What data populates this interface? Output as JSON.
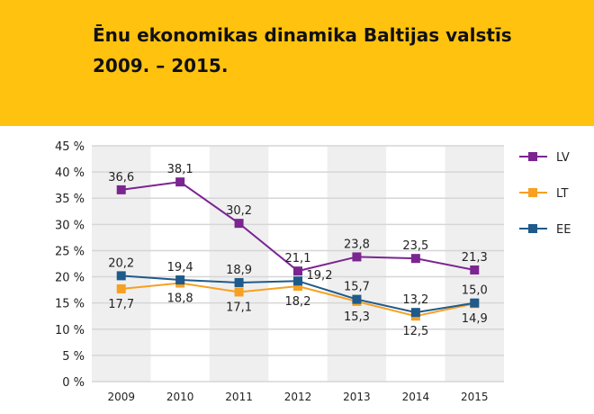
{
  "header": {
    "title_line1": "Ēnu ekonomikas dinamika Baltijas valstīs",
    "title_line2": "2009. – 2015."
  },
  "colors": {
    "header_bg": "#FFC20E",
    "LV": "#7B2591",
    "LT": "#F7A021",
    "EE": "#1F5A8A",
    "band": "#EFEFEF",
    "grid": "#D6D6D6"
  },
  "chart_data": {
    "type": "line",
    "categories": [
      "2009",
      "2010",
      "2011",
      "2012",
      "2013",
      "2014",
      "2015"
    ],
    "ylim": [
      0,
      45
    ],
    "yticks": [
      "0 %",
      "5 %",
      "10 %",
      "15 %",
      "20 %",
      "25 %",
      "30 %",
      "35 %",
      "40 %",
      "45 %"
    ],
    "grid": true,
    "legend": "right",
    "series": [
      {
        "name": "LV",
        "values": [
          36.6,
          38.1,
          30.2,
          21.1,
          23.8,
          23.5,
          21.3
        ],
        "labels": [
          "36,6",
          "38,1",
          "30,2",
          "21,1",
          "23,8",
          "23,5",
          "21,3"
        ]
      },
      {
        "name": "LT",
        "values": [
          17.7,
          18.8,
          17.1,
          18.2,
          15.3,
          12.5,
          14.9
        ],
        "labels": [
          "17,7",
          "18,8",
          "17,1",
          "18,2",
          "15,3",
          "12,5",
          "14,9"
        ]
      },
      {
        "name": "EE",
        "values": [
          20.2,
          19.4,
          18.9,
          19.2,
          15.7,
          13.2,
          15.0
        ],
        "labels": [
          "20,2",
          "19,4",
          "18,9",
          "19,2",
          "15,7",
          "13,2",
          "15,0"
        ]
      }
    ]
  }
}
